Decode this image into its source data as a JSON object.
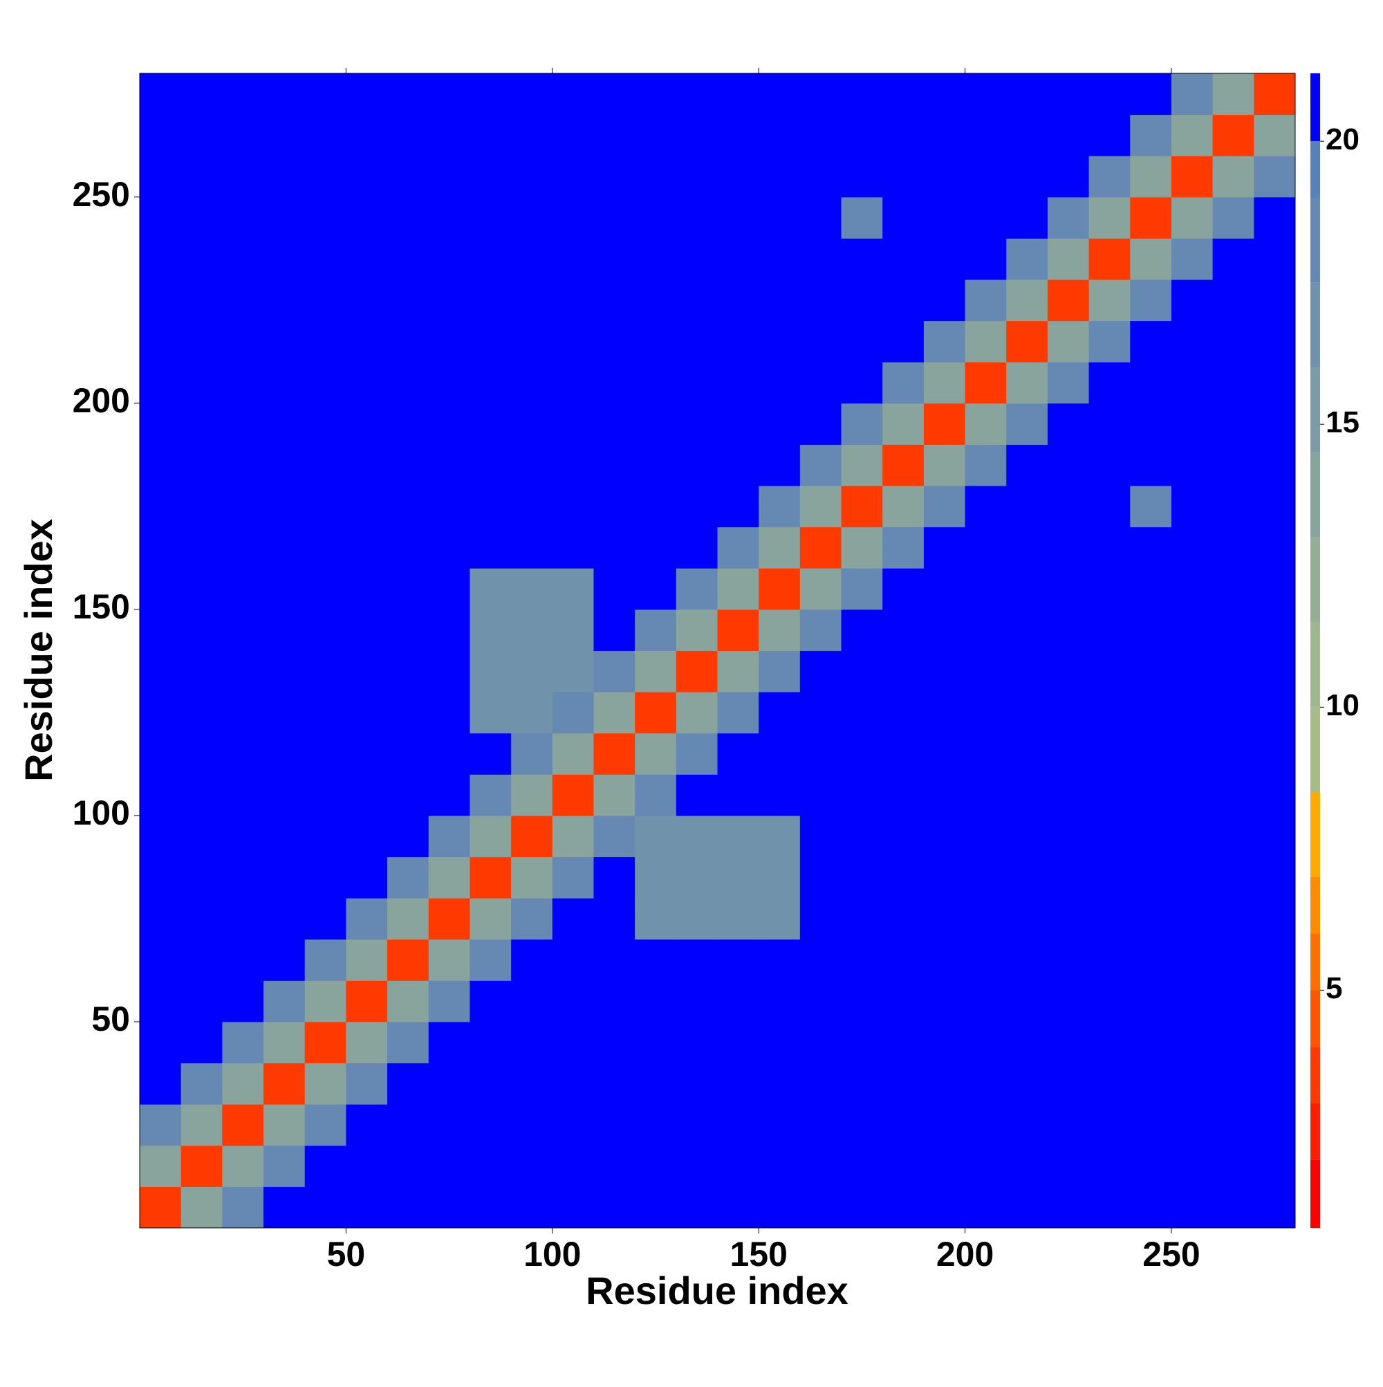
{
  "chart_data": {
    "type": "heatmap",
    "x_label": "Residue index",
    "y_label": "Residue index",
    "xlim": [
      0,
      280
    ],
    "ylim": [
      0,
      280
    ],
    "xticks": [
      50,
      100,
      150,
      200,
      250
    ],
    "yticks": [
      50,
      100,
      150,
      200,
      250
    ],
    "xbins": [
      0,
      10,
      20,
      30,
      40,
      50,
      60,
      70,
      80,
      90,
      100,
      110,
      120,
      130,
      140,
      150,
      160,
      170,
      180,
      190,
      200,
      210,
      220,
      230,
      240,
      250,
      260,
      270,
      280
    ],
    "ybins": [
      0,
      10,
      20,
      30,
      40,
      50,
      60,
      70,
      80,
      90,
      100,
      110,
      120,
      130,
      140,
      150,
      160,
      170,
      180,
      190,
      200,
      210,
      220,
      230,
      240,
      250,
      260,
      270,
      280
    ],
    "zlim": [
      0.8,
      21.2
    ],
    "zticks": [
      5,
      10,
      15,
      20
    ],
    "colorscale": [
      {
        "max": 2,
        "color": "#ff0000"
      },
      {
        "max": 3,
        "color": "#ff1f00"
      },
      {
        "max": 4,
        "color": "#ff3a00"
      },
      {
        "max": 5,
        "color": "#ff5500"
      },
      {
        "max": 6,
        "color": "#ff7000"
      },
      {
        "max": 7,
        "color": "#ff8c00"
      },
      {
        "max": 8.5,
        "color": "#ffaa00"
      },
      {
        "max": 10,
        "color": "#a7bb88"
      },
      {
        "max": 11.5,
        "color": "#9fb68e"
      },
      {
        "max": 13,
        "color": "#94ad95"
      },
      {
        "max": 14.5,
        "color": "#88a49c"
      },
      {
        "max": 16,
        "color": "#7d9ba4"
      },
      {
        "max": 17.5,
        "color": "#7092ab"
      },
      {
        "max": 19,
        "color": "#6589b3"
      },
      {
        "max": 20,
        "color": "#5a82ba"
      },
      {
        "max": 21.2,
        "color": "#0000ff"
      }
    ],
    "z": [
      [
        4,
        14,
        19,
        21,
        21,
        21,
        21,
        21,
        21,
        21,
        21,
        21,
        21,
        21,
        21,
        21,
        21,
        21,
        21,
        21,
        21,
        21,
        21,
        21,
        21,
        21,
        21,
        21
      ],
      [
        14,
        4,
        14,
        19,
        21,
        21,
        21,
        21,
        21,
        21,
        21,
        21,
        21,
        21,
        21,
        21,
        21,
        21,
        21,
        21,
        21,
        21,
        21,
        21,
        21,
        21,
        21,
        21
      ],
      [
        19,
        14,
        4,
        14,
        19,
        21,
        21,
        21,
        21,
        21,
        21,
        21,
        21,
        21,
        21,
        21,
        21,
        21,
        21,
        21,
        21,
        21,
        21,
        21,
        21,
        21,
        21,
        21
      ],
      [
        21,
        19,
        14,
        4,
        14,
        19,
        21,
        21,
        21,
        21,
        21,
        21,
        21,
        21,
        21,
        21,
        21,
        21,
        21,
        21,
        21,
        21,
        21,
        21,
        21,
        21,
        21,
        21
      ],
      [
        21,
        21,
        19,
        14,
        4,
        14,
        19,
        21,
        21,
        21,
        21,
        21,
        21,
        21,
        21,
        21,
        21,
        21,
        21,
        21,
        21,
        21,
        21,
        21,
        21,
        21,
        21,
        21
      ],
      [
        21,
        21,
        21,
        19,
        14,
        4,
        14,
        19,
        21,
        21,
        21,
        21,
        21,
        21,
        21,
        21,
        21,
        21,
        21,
        21,
        21,
        21,
        21,
        21,
        21,
        21,
        21,
        21
      ],
      [
        21,
        21,
        21,
        21,
        19,
        14,
        4,
        14,
        19,
        21,
        21,
        21,
        21,
        21,
        21,
        21,
        21,
        21,
        21,
        21,
        21,
        21,
        21,
        21,
        21,
        21,
        21,
        21
      ],
      [
        21,
        21,
        21,
        21,
        21,
        19,
        14,
        4,
        14,
        19,
        21,
        21,
        17,
        17,
        17,
        17,
        21,
        21,
        21,
        21,
        21,
        21,
        21,
        21,
        21,
        21,
        21,
        21
      ],
      [
        21,
        21,
        21,
        21,
        21,
        21,
        19,
        14,
        4,
        14,
        19,
        21,
        17,
        17,
        17,
        17,
        21,
        21,
        21,
        21,
        21,
        21,
        21,
        21,
        21,
        21,
        21,
        21
      ],
      [
        21,
        21,
        21,
        21,
        21,
        21,
        21,
        19,
        14,
        4,
        14,
        19,
        17,
        17,
        17,
        17,
        21,
        21,
        21,
        21,
        21,
        21,
        21,
        21,
        21,
        21,
        21,
        21
      ],
      [
        21,
        21,
        21,
        21,
        21,
        21,
        21,
        21,
        19,
        14,
        4,
        14,
        19,
        21,
        21,
        21,
        21,
        21,
        21,
        21,
        21,
        21,
        21,
        21,
        21,
        21,
        21,
        21
      ],
      [
        21,
        21,
        21,
        21,
        21,
        21,
        21,
        21,
        21,
        19,
        14,
        4,
        14,
        19,
        21,
        21,
        21,
        21,
        21,
        21,
        21,
        21,
        21,
        21,
        21,
        21,
        21,
        21
      ],
      [
        21,
        21,
        21,
        21,
        21,
        21,
        21,
        21,
        17,
        17,
        19,
        14,
        4,
        14,
        19,
        21,
        21,
        21,
        21,
        21,
        21,
        21,
        21,
        21,
        21,
        21,
        21,
        21
      ],
      [
        21,
        21,
        21,
        21,
        21,
        21,
        21,
        21,
        17,
        17,
        17,
        19,
        14,
        4,
        14,
        19,
        21,
        21,
        21,
        21,
        21,
        21,
        21,
        21,
        21,
        21,
        21,
        21
      ],
      [
        21,
        21,
        21,
        21,
        21,
        21,
        21,
        21,
        17,
        17,
        17,
        21,
        19,
        14,
        4,
        14,
        19,
        21,
        21,
        21,
        21,
        21,
        21,
        21,
        21,
        21,
        21,
        21
      ],
      [
        21,
        21,
        21,
        21,
        21,
        21,
        21,
        21,
        17,
        17,
        17,
        21,
        21,
        19,
        14,
        4,
        14,
        19,
        21,
        21,
        21,
        21,
        21,
        21,
        21,
        21,
        21,
        21
      ],
      [
        21,
        21,
        21,
        21,
        21,
        21,
        21,
        21,
        21,
        21,
        21,
        21,
        21,
        21,
        19,
        14,
        4,
        14,
        19,
        21,
        21,
        21,
        21,
        21,
        21,
        21,
        21,
        21
      ],
      [
        21,
        21,
        21,
        21,
        21,
        21,
        21,
        21,
        21,
        21,
        21,
        21,
        21,
        21,
        21,
        19,
        14,
        4,
        14,
        19,
        21,
        21,
        21,
        21,
        18,
        21,
        21,
        21
      ],
      [
        21,
        21,
        21,
        21,
        21,
        21,
        21,
        21,
        21,
        21,
        21,
        21,
        21,
        21,
        21,
        21,
        19,
        14,
        4,
        14,
        19,
        21,
        21,
        21,
        21,
        21,
        21,
        21
      ],
      [
        21,
        21,
        21,
        21,
        21,
        21,
        21,
        21,
        21,
        21,
        21,
        21,
        21,
        21,
        21,
        21,
        21,
        19,
        14,
        4,
        14,
        19,
        21,
        21,
        21,
        21,
        21,
        21
      ],
      [
        21,
        21,
        21,
        21,
        21,
        21,
        21,
        21,
        21,
        21,
        21,
        21,
        21,
        21,
        21,
        21,
        21,
        21,
        19,
        14,
        4,
        14,
        19,
        21,
        21,
        21,
        21,
        21
      ],
      [
        21,
        21,
        21,
        21,
        21,
        21,
        21,
        21,
        21,
        21,
        21,
        21,
        21,
        21,
        21,
        21,
        21,
        21,
        21,
        19,
        14,
        4,
        14,
        19,
        21,
        21,
        21,
        21
      ],
      [
        21,
        21,
        21,
        21,
        21,
        21,
        21,
        21,
        21,
        21,
        21,
        21,
        21,
        21,
        21,
        21,
        21,
        21,
        21,
        21,
        19,
        14,
        4,
        14,
        19,
        21,
        21,
        21
      ],
      [
        21,
        21,
        21,
        21,
        21,
        21,
        21,
        21,
        21,
        21,
        21,
        21,
        21,
        21,
        21,
        21,
        21,
        21,
        21,
        21,
        21,
        19,
        14,
        4,
        14,
        19,
        21,
        21
      ],
      [
        21,
        21,
        21,
        21,
        21,
        21,
        21,
        21,
        21,
        21,
        21,
        21,
        21,
        21,
        21,
        21,
        21,
        18,
        21,
        21,
        21,
        21,
        19,
        14,
        4,
        14,
        19,
        21
      ],
      [
        21,
        21,
        21,
        21,
        21,
        21,
        21,
        21,
        21,
        21,
        21,
        21,
        21,
        21,
        21,
        21,
        21,
        21,
        21,
        21,
        21,
        21,
        21,
        19,
        14,
        4,
        14,
        19
      ],
      [
        21,
        21,
        21,
        21,
        21,
        21,
        21,
        21,
        21,
        21,
        21,
        21,
        21,
        21,
        21,
        21,
        21,
        21,
        21,
        21,
        21,
        21,
        21,
        21,
        19,
        14,
        4,
        14
      ],
      [
        21,
        21,
        21,
        21,
        21,
        21,
        21,
        21,
        21,
        21,
        21,
        21,
        21,
        21,
        21,
        21,
        21,
        21,
        21,
        21,
        21,
        21,
        21,
        21,
        21,
        19,
        14,
        4
      ]
    ]
  }
}
